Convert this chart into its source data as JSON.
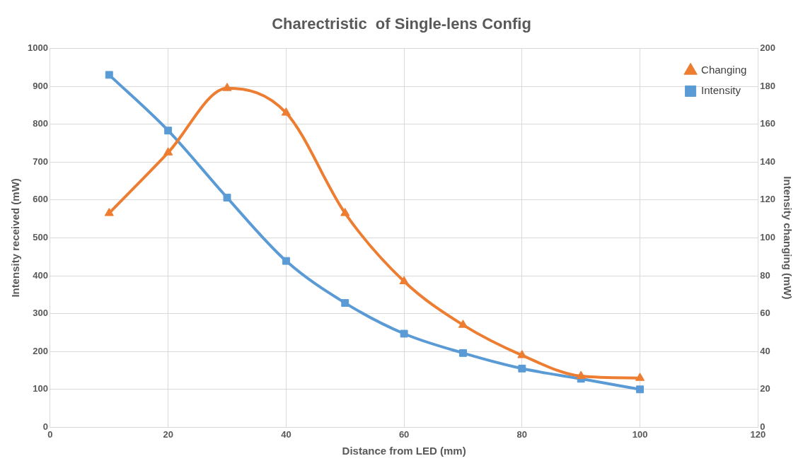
{
  "chart_data": {
    "type": "line",
    "title": "Charectristic  of Single-lens Config",
    "xlabel": "Distance from LED (mm)",
    "ylabel": "Intensity received (mW)",
    "y2label": "Intensity changing (mW)",
    "x": [
      10,
      20,
      30,
      40,
      50,
      60,
      70,
      80,
      90,
      100
    ],
    "series": [
      {
        "name": "Intensity",
        "color": "#5b9bd5",
        "marker": "square",
        "values": [
          930,
          783,
          606,
          439,
          328,
          247,
          196,
          155,
          128,
          100
        ]
      },
      {
        "name": "Changing",
        "color": "#ed7d31",
        "marker": "triangle",
        "axis": "y2",
        "values": [
          113,
          145,
          179,
          166,
          113,
          77,
          54,
          38,
          27,
          26
        ]
      }
    ],
    "xlim": [
      0,
      120
    ],
    "xticks": [
      0,
      20,
      40,
      60,
      80,
      100,
      120
    ],
    "ylim": [
      0,
      1000
    ],
    "yticks": [
      0,
      100,
      200,
      300,
      400,
      500,
      600,
      700,
      800,
      900,
      1000
    ],
    "y2lim": [
      0,
      200
    ],
    "y2ticks": [
      0,
      20,
      40,
      60,
      80,
      100,
      120,
      140,
      160,
      180,
      200
    ],
    "grid": true,
    "legend": "top right",
    "line_style": "solid"
  }
}
